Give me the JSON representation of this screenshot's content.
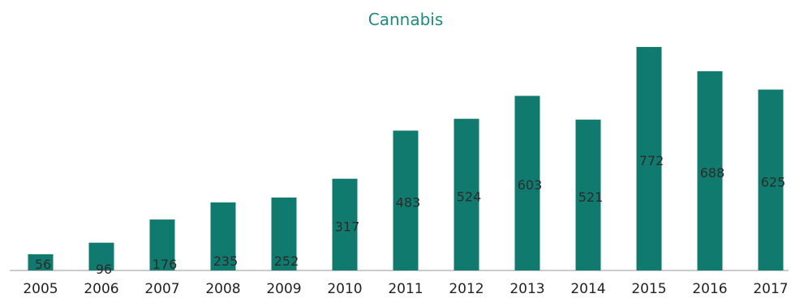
{
  "chart_data": {
    "type": "bar",
    "title": "Cannabis",
    "xlabel": "",
    "ylabel": "",
    "categories": [
      "2005",
      "2006",
      "2007",
      "2008",
      "2009",
      "2010",
      "2011",
      "2012",
      "2013",
      "2014",
      "2015",
      "2016",
      "2017"
    ],
    "values": [
      56,
      96,
      176,
      235,
      252,
      317,
      483,
      524,
      603,
      521,
      772,
      688,
      625
    ],
    "ylim": [
      0,
      800
    ],
    "grid": false,
    "legend": "none",
    "colors": {
      "bar": "#117a6f",
      "title": "#1f8a80",
      "axis": "#9a9a9a"
    }
  }
}
